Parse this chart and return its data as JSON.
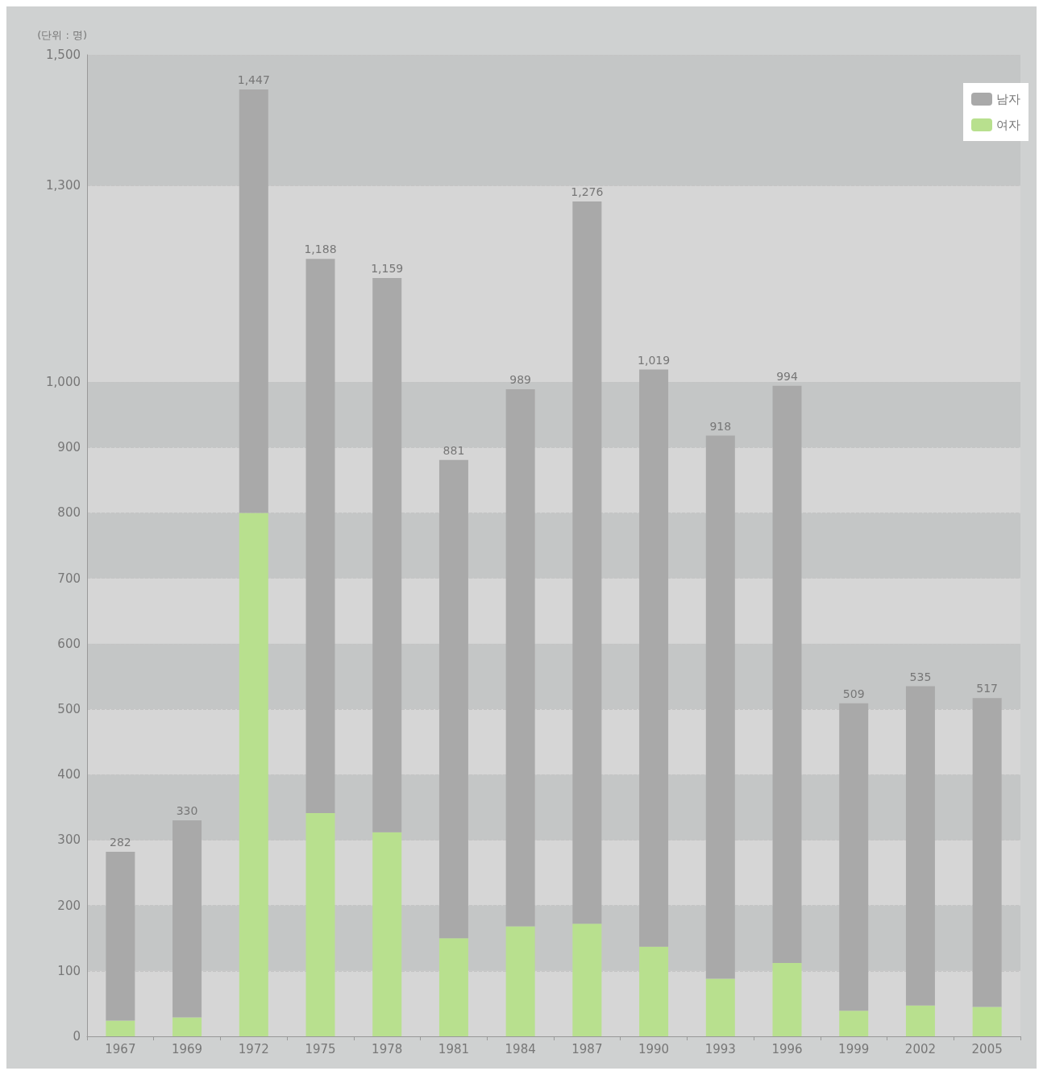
{
  "chart_data": {
    "type": "bar",
    "stacked": true,
    "ylabel": "(단위 : 명)",
    "categories": [
      "1967",
      "1969",
      "1972",
      "1975",
      "1978",
      "1981",
      "1984",
      "1987",
      "1990",
      "1993",
      "1996",
      "1999",
      "2002",
      "2005"
    ],
    "series": [
      {
        "name": "여자",
        "color": "#b8e08e",
        "values": [
          24,
          29,
          800,
          341,
          312,
          150,
          168,
          172,
          137,
          88,
          112,
          39,
          47,
          45
        ]
      },
      {
        "name": "남자",
        "color": "#a9a9a9",
        "values": [
          258,
          301,
          647,
          847,
          847,
          731,
          821,
          1104,
          882,
          830,
          882,
          470,
          488,
          472
        ]
      }
    ],
    "totals": [
      "282",
      "330",
      "1,447",
      "1,188",
      "1,159",
      "881",
      "989",
      "1,276",
      "1,019",
      "918",
      "994",
      "509",
      "535",
      "517"
    ],
    "ylim": [
      0,
      1500
    ],
    "yticks": [
      0,
      100,
      200,
      300,
      400,
      500,
      600,
      700,
      800,
      900,
      {
        "value": 1000,
        "label": "1,000"
      },
      {
        "value": 1300,
        "label": "1,300"
      },
      {
        "value": 1500,
        "label": "1,500"
      }
    ],
    "grid": "y",
    "legend": "top right"
  }
}
